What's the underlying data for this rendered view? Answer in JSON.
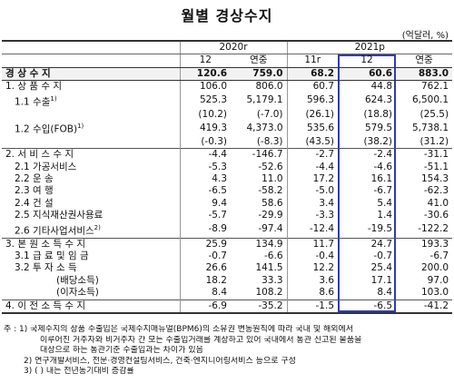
{
  "title": "월별 경상수지",
  "unit": "(억달러, %)",
  "header": {
    "year2020": "2020r",
    "year2021": "2021p",
    "cols": [
      "12",
      "연중",
      "11r",
      "12",
      "연중"
    ]
  },
  "rows": [
    {
      "label": "경 상 수 지",
      "v": [
        "120.6",
        "759.0",
        "68.2",
        "60.6",
        "883.0"
      ]
    },
    {
      "label": "1. 상 품 수 지",
      "v": [
        "106.0",
        "806.0",
        "60.7",
        "44.8",
        "762.1"
      ]
    },
    {
      "label": "1.1 수출",
      "v": [
        "525.3",
        "5,179.1",
        "596.3",
        "624.3",
        "6,500.1"
      ]
    },
    {
      "label": "",
      "v": [
        "(10.2)",
        "(-7.0)",
        "(26.1)",
        "(18.8)",
        "(25.5)"
      ]
    },
    {
      "label": "1.2 수입(FOB)",
      "v": [
        "419.3",
        "4,373.0",
        "535.6",
        "579.5",
        "5,738.1"
      ]
    },
    {
      "label": "",
      "v": [
        "(-0.3)",
        "(-8.3)",
        "(43.5)",
        "(38.2)",
        "(31.2)"
      ]
    },
    {
      "label": "2. 서 비 스 수 지",
      "v": [
        "-4.4",
        "-146.7",
        "-2.7",
        "-2.4",
        "-31.1"
      ]
    },
    {
      "label": "2.1 가공서비스",
      "v": [
        "-5.3",
        "-52.6",
        "-4.4",
        "-4.6",
        "-51.1"
      ]
    },
    {
      "label": "2.2 운     송",
      "v": [
        "4.3",
        "11.0",
        "17.2",
        "16.1",
        "154.3"
      ]
    },
    {
      "label": "2.3 여     행",
      "v": [
        "-6.5",
        "-58.2",
        "-5.0",
        "-6.7",
        "-62.3"
      ]
    },
    {
      "label": "2.4 건     설",
      "v": [
        "9.4",
        "58.6",
        "3.4",
        "5.4",
        "41.0"
      ]
    },
    {
      "label": "2.5 지식재산권사용료",
      "v": [
        "-5.7",
        "-29.9",
        "-3.3",
        "1.4",
        "-30.6"
      ]
    },
    {
      "label": "2.6 기타사업서비스",
      "v": [
        "-8.9",
        "-97.4",
        "-12.4",
        "-19.5",
        "-122.2"
      ]
    },
    {
      "label": "3. 본 원 소 득 수 지",
      "v": [
        "25.9",
        "134.9",
        "11.7",
        "24.7",
        "193.3"
      ]
    },
    {
      "label": "3.1 급 료 및 임 금",
      "v": [
        "-0.7",
        "-6.6",
        "-0.4",
        "-0.7",
        "-6.7"
      ]
    },
    {
      "label": "3.2 투 자 소 득",
      "v": [
        "26.6",
        "141.5",
        "12.2",
        "25.4",
        "200.0"
      ]
    },
    {
      "label": "(배당소득)",
      "v": [
        "18.2",
        "33.3",
        "3.6",
        "17.1",
        "97.0"
      ]
    },
    {
      "label": "(이자소득)",
      "v": [
        "8.4",
        "108.2",
        "8.6",
        "8.4",
        "103.0"
      ]
    },
    {
      "label": "4. 이 전 소 득 수 지",
      "v": [
        "-6.9",
        "-35.2",
        "-1.5",
        "-6.5",
        "-41.2"
      ]
    }
  ],
  "sup": {
    "export": "1)",
    "import": "1)",
    "biz": "2)"
  },
  "notes": [
    "주 : 1) 국제수지의 상품 수출입은 국제수지매뉴얼(BPM6)의 소유권 변동원칙에 따라 국내 및 해외에서",
    "이루어진 거주자와 비거주자 간 모든 수출입거래를 계상하고 있어 국내에서 통관 신고된 물품을",
    "대상으로 하는 통관기준 수출입과는 차이가 있음",
    "2) 연구개발서비스, 전문·경영컨설팅서비스, 건축·엔지니어링서비스 등으로 구성",
    "3) ( ) 내는 전년동기대비 증감률"
  ],
  "colors": {
    "highlight": "#2d3bb8"
  }
}
